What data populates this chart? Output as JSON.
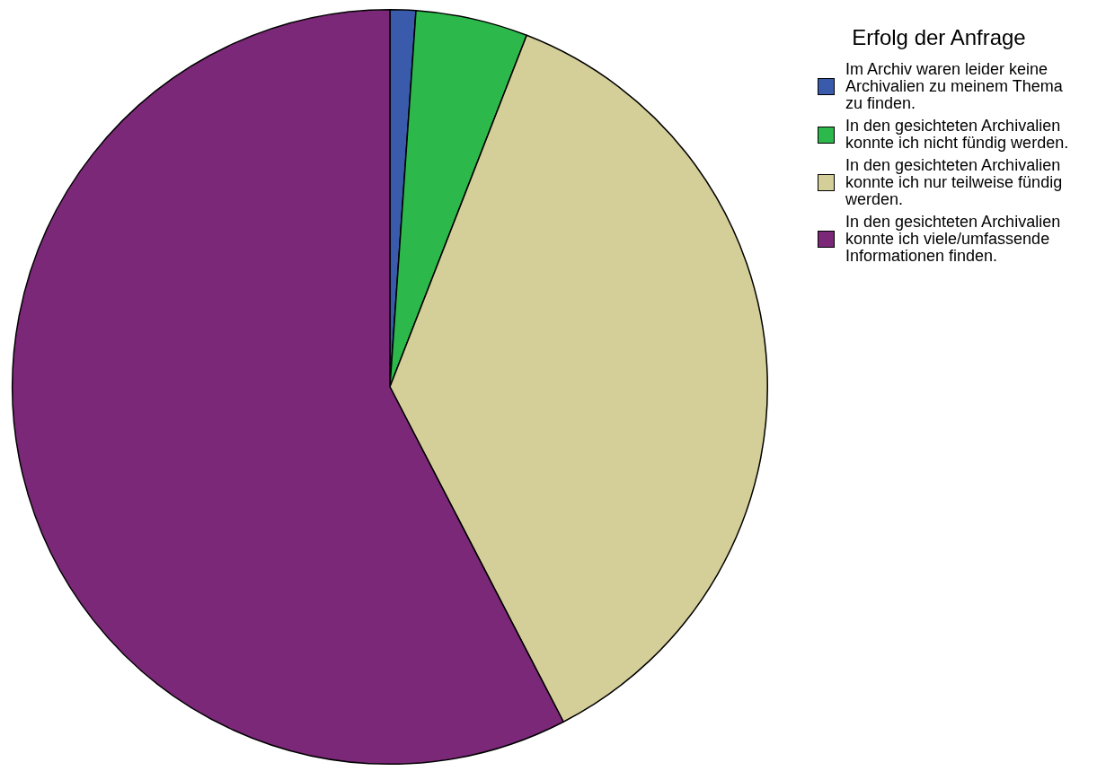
{
  "chart_data": {
    "type": "pie",
    "legend_title": "Erfolg der Anfrage",
    "categories": [
      "Im Archiv waren leider keine Archivalien zu meinem Thema zu finden.",
      "In den gesichteten Archivalien konnte ich nicht fündig werden.",
      "In den gesichteten Archivalien konnte ich nur teilweise fündig werden.",
      "In den gesichteten Archivalien konnte ich viele/umfassende Informationen finden."
    ],
    "values": [
      1.1,
      4.8,
      36.5,
      57.6
    ],
    "colors": [
      "#3a5bab",
      "#2db84b",
      "#d4ce99",
      "#7b2878"
    ],
    "legend": "top right"
  }
}
